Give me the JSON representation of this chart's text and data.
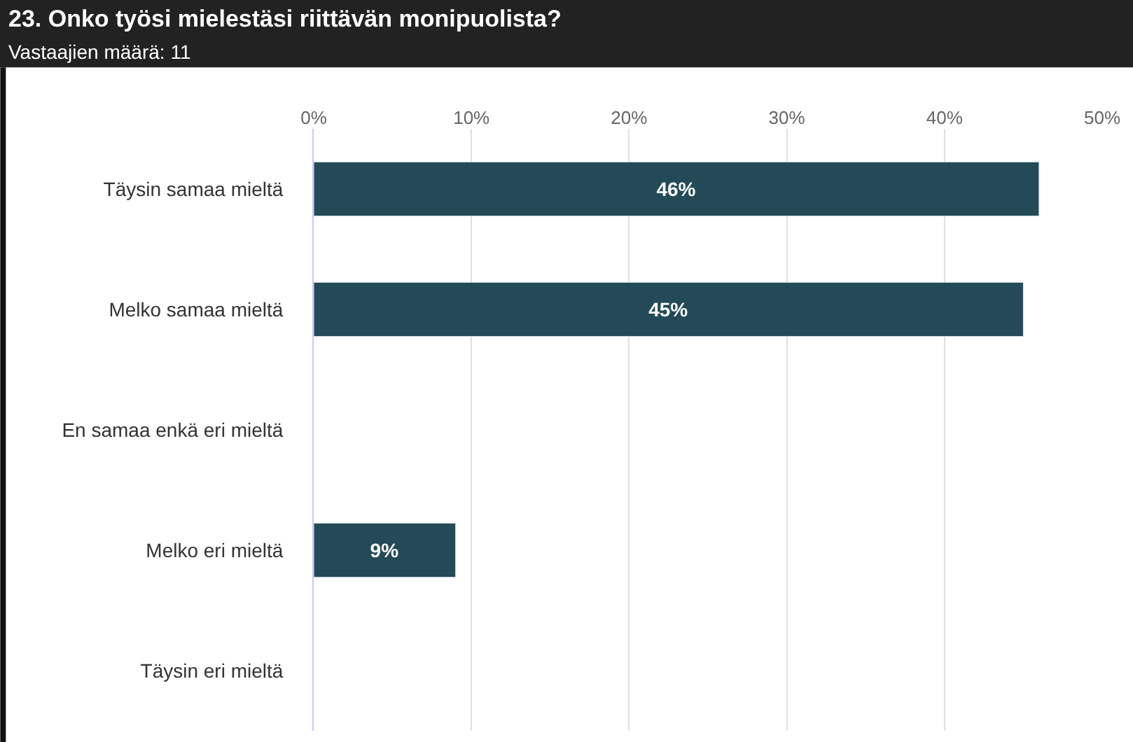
{
  "chart_data": {
    "type": "bar",
    "orientation": "horizontal",
    "title": "23. Onko työsi mielestäsi riittävän monipuolista?",
    "subtitle": "Vastaajien määrä: 11",
    "categories": [
      "Täysin samaa mieltä",
      "Melko samaa mieltä",
      "En samaa enkä eri mieltä",
      "Melko eri mieltä",
      "Täysin eri mieltä"
    ],
    "values": [
      46,
      45,
      0,
      9,
      0
    ],
    "value_labels": [
      "46%",
      "45%",
      null,
      "9%",
      null
    ],
    "color": "#234a56",
    "xlim": [
      0,
      50
    ],
    "xticks": [
      {
        "value": 0,
        "label": "0%"
      },
      {
        "value": 10,
        "label": "10%"
      },
      {
        "value": 20,
        "label": "20%"
      },
      {
        "value": 30,
        "label": "30%"
      },
      {
        "value": 40,
        "label": "40%"
      },
      {
        "value": 50,
        "label": "50%"
      }
    ],
    "grid": "x",
    "legend": false
  }
}
